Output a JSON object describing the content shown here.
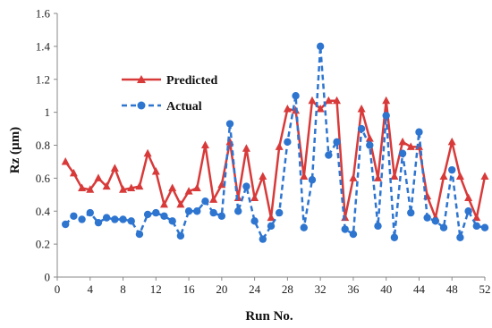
{
  "chart_data": {
    "type": "line",
    "title": "",
    "xlabel": "Run No.",
    "ylabel": "Rz (µm)",
    "xlim": [
      0,
      52
    ],
    "ylim": [
      0,
      1.6
    ],
    "xticks": [
      0,
      4,
      8,
      12,
      16,
      20,
      24,
      28,
      32,
      36,
      40,
      44,
      48,
      52
    ],
    "yticks": [
      0,
      0.2,
      0.4,
      0.6,
      0.8,
      1,
      1.2,
      1.4,
      1.6
    ],
    "ytick_labels": [
      "0",
      "0.2",
      "0.4",
      "0.6",
      "0.8",
      "1",
      "1.2",
      "1.4",
      "1.6"
    ],
    "grid": false,
    "legend_position": "upper-left",
    "x": [
      1,
      2,
      3,
      4,
      5,
      6,
      7,
      8,
      9,
      10,
      11,
      12,
      13,
      14,
      15,
      16,
      17,
      18,
      19,
      20,
      21,
      22,
      23,
      24,
      25,
      26,
      27,
      28,
      29,
      30,
      31,
      32,
      33,
      34,
      35,
      36,
      37,
      38,
      39,
      40,
      41,
      42,
      43,
      44,
      45,
      46,
      47,
      48,
      49,
      50,
      51,
      52
    ],
    "series": [
      {
        "name": "Predicted",
        "color": "#d83a3a",
        "line_style": "solid",
        "marker": "triangle",
        "values": [
          0.7,
          0.63,
          0.54,
          0.53,
          0.6,
          0.55,
          0.66,
          0.53,
          0.54,
          0.55,
          0.75,
          0.64,
          0.44,
          0.54,
          0.44,
          0.52,
          0.54,
          0.8,
          0.47,
          0.56,
          0.82,
          0.48,
          0.78,
          0.48,
          0.61,
          0.36,
          0.79,
          1.02,
          1.01,
          0.61,
          1.07,
          1.02,
          1.07,
          1.07,
          0.36,
          0.6,
          1.02,
          0.84,
          0.6,
          1.07,
          0.61,
          0.82,
          0.79,
          0.79,
          0.49,
          0.36,
          0.61,
          0.82,
          0.61,
          0.48,
          0.36,
          0.61
        ]
      },
      {
        "name": "Actual",
        "color": "#2e75d0",
        "line_style": "dashed",
        "marker": "circle",
        "values": [
          0.32,
          0.37,
          0.35,
          0.39,
          0.33,
          0.36,
          0.35,
          0.35,
          0.34,
          0.26,
          0.38,
          0.39,
          0.37,
          0.34,
          0.25,
          0.4,
          0.4,
          0.46,
          0.39,
          0.37,
          0.93,
          0.4,
          0.55,
          0.34,
          0.23,
          0.31,
          0.39,
          0.82,
          1.1,
          0.3,
          0.59,
          1.4,
          0.74,
          0.82,
          0.29,
          0.26,
          0.9,
          0.8,
          0.31,
          0.98,
          0.24,
          0.75,
          0.39,
          0.88,
          0.36,
          0.34,
          0.3,
          0.65,
          0.24,
          0.4,
          0.31,
          0.3
        ]
      }
    ]
  }
}
